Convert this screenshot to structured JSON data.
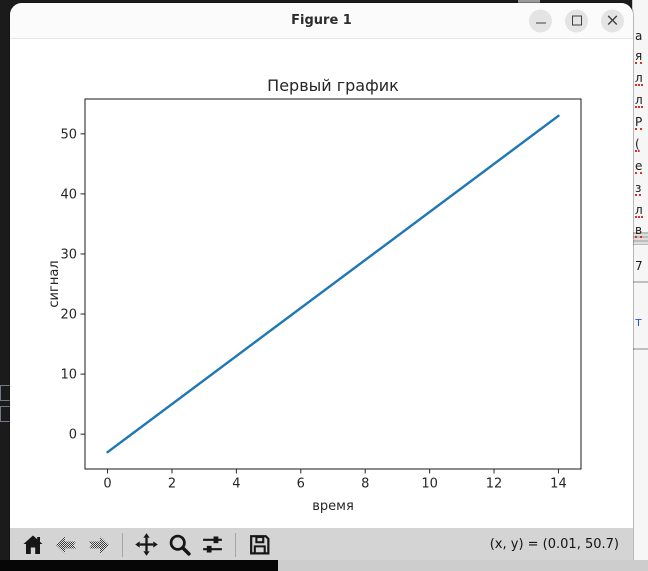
{
  "window": {
    "title": "Figure 1",
    "controls": [
      {
        "name": "minimize"
      },
      {
        "name": "maximize"
      },
      {
        "name": "close"
      }
    ]
  },
  "chart_data": {
    "type": "line",
    "title": "Первый график",
    "xlabel": "время",
    "ylabel": "сигнал",
    "xlim": [
      -0.7,
      14.7
    ],
    "ylim": [
      -5.8,
      55.8
    ],
    "xticks": [
      0,
      2,
      4,
      6,
      8,
      10,
      12,
      14
    ],
    "yticks": [
      0,
      10,
      20,
      30,
      40,
      50
    ],
    "grid": false,
    "legend": null,
    "series": [
      {
        "name": "сигнал",
        "color": "#1f77b4",
        "points": [
          [
            0,
            -3
          ],
          [
            14,
            53
          ]
        ]
      }
    ]
  },
  "toolbar": {
    "buttons": [
      "home",
      "back",
      "forward",
      "pan",
      "zoom-to-rect",
      "configure-subplots",
      "save"
    ],
    "coordinates": "(x, y) = (0.01, 50.7)"
  },
  "background_window": {
    "fragments": [
      "a",
      "я",
      "л",
      "л",
      "Р",
      "(",
      "е",
      "з",
      "л",
      "в",
      "7",
      "т"
    ]
  },
  "colors": {
    "line": "#1f77b4",
    "toolbar_bg": "#d4d4d4",
    "titlebar_bg": "#fbfbfb",
    "canvas_bg": "#ffffff",
    "desktop_bg": "#1b1b1b"
  }
}
